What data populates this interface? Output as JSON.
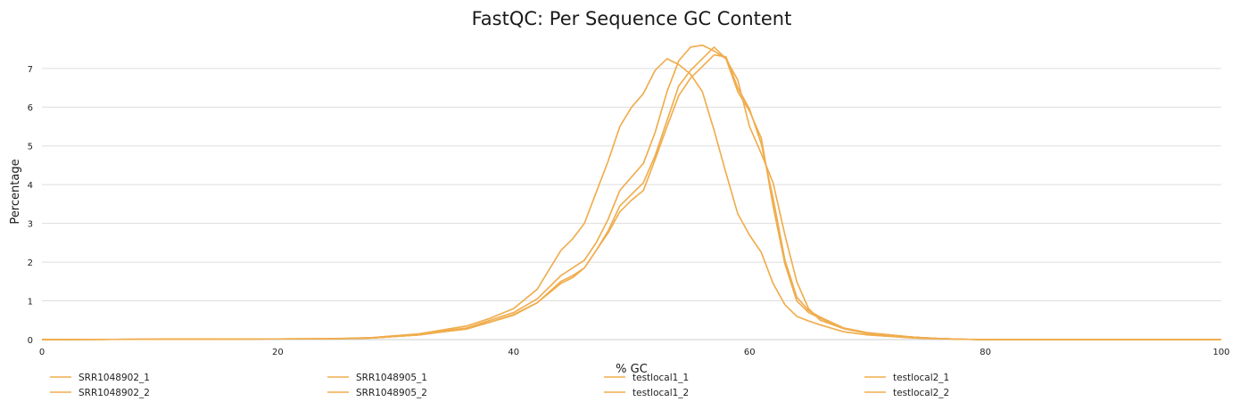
{
  "chart_data": {
    "type": "line",
    "title": "FastQC: Per Sequence GC Content",
    "xlabel": "% GC",
    "ylabel": "Percentage",
    "xlim": [
      0,
      100
    ],
    "ylim": [
      0,
      7.8
    ],
    "xticks": [
      0,
      20,
      40,
      60,
      80,
      100
    ],
    "yticks": [
      0,
      1,
      2,
      3,
      4,
      5,
      6,
      7
    ],
    "grid": true,
    "legend": "bottom",
    "color": "#f0ad4e",
    "series": [
      {
        "name": "SRR1048902_1",
        "x": [
          24,
          28,
          32,
          34,
          36,
          38,
          40,
          42,
          44,
          45,
          46,
          47,
          48,
          49,
          50,
          51,
          52,
          53,
          54,
          55,
          56,
          57,
          58,
          59,
          60,
          61,
          62,
          63,
          64,
          65,
          66,
          68,
          70,
          72,
          74,
          76,
          78,
          80
        ],
        "y": [
          0.02,
          0.05,
          0.15,
          0.25,
          0.35,
          0.55,
          0.8,
          1.3,
          2.3,
          2.6,
          3.0,
          3.8,
          4.6,
          5.5,
          6.0,
          6.35,
          6.95,
          7.25,
          7.1,
          6.85,
          6.4,
          5.4,
          4.3,
          3.25,
          2.7,
          2.25,
          1.45,
          0.9,
          0.6,
          0.48,
          0.38,
          0.2,
          0.12,
          0.08,
          0.04,
          0.02,
          0.01,
          0.0
        ]
      },
      {
        "name": "SRR1048902_2",
        "x": [
          24,
          28,
          32,
          34,
          36,
          38,
          40,
          42,
          44,
          45,
          46,
          47,
          48,
          49,
          50,
          51,
          52,
          53,
          54,
          55,
          56,
          57,
          58,
          59,
          60,
          61,
          62,
          63,
          64,
          65,
          66,
          68,
          70,
          72,
          74,
          76,
          78,
          80
        ],
        "y": [
          0.02,
          0.04,
          0.13,
          0.22,
          0.3,
          0.5,
          0.7,
          1.05,
          1.65,
          1.85,
          2.05,
          2.5,
          3.1,
          3.85,
          4.2,
          4.55,
          5.35,
          6.4,
          7.2,
          7.55,
          7.6,
          7.45,
          7.25,
          6.7,
          5.5,
          4.8,
          4.05,
          2.7,
          1.5,
          0.8,
          0.5,
          0.28,
          0.16,
          0.11,
          0.06,
          0.03,
          0.01,
          0.0
        ]
      },
      {
        "name": "SRR1048905_1",
        "x": [
          24,
          28,
          32,
          34,
          36,
          38,
          40,
          42,
          44,
          45,
          46,
          47,
          48,
          49,
          50,
          51,
          52,
          53,
          54,
          55,
          56,
          57,
          58,
          59,
          60,
          61,
          62,
          63,
          64,
          65,
          66,
          68,
          70,
          72,
          74,
          76,
          78,
          80
        ],
        "y": [
          0.02,
          0.04,
          0.12,
          0.2,
          0.28,
          0.45,
          0.65,
          0.95,
          1.5,
          1.65,
          1.85,
          2.3,
          2.75,
          3.3,
          3.6,
          3.85,
          4.65,
          5.5,
          6.3,
          6.75,
          7.05,
          7.35,
          7.3,
          6.5,
          5.95,
          5.05,
          3.65,
          2.05,
          1.1,
          0.75,
          0.58,
          0.3,
          0.18,
          0.12,
          0.06,
          0.03,
          0.01,
          0.0
        ]
      },
      {
        "name": "SRR1048905_2",
        "x": [
          24,
          28,
          32,
          34,
          36,
          38,
          40,
          42,
          44,
          45,
          46,
          47,
          48,
          49,
          50,
          51,
          52,
          53,
          54,
          55,
          56,
          57,
          58,
          59,
          60,
          61,
          62,
          63,
          64,
          65,
          66,
          68,
          70,
          72,
          74,
          76,
          78,
          80
        ],
        "y": [
          0.02,
          0.04,
          0.12,
          0.2,
          0.27,
          0.45,
          0.63,
          0.95,
          1.45,
          1.6,
          1.85,
          2.3,
          2.8,
          3.45,
          3.75,
          4.05,
          4.75,
          5.65,
          6.55,
          6.95,
          7.25,
          7.55,
          7.25,
          6.4,
          5.9,
          5.2,
          3.45,
          1.95,
          1.0,
          0.7,
          0.55,
          0.28,
          0.16,
          0.11,
          0.06,
          0.03,
          0.01,
          0.0
        ]
      },
      {
        "name": "testlocal1_1",
        "x": [
          24,
          28,
          32,
          34,
          36,
          38,
          40,
          42,
          44,
          45,
          46,
          47,
          48,
          49,
          50,
          51,
          52,
          53,
          54,
          55,
          56,
          57,
          58,
          59,
          60,
          61,
          62,
          63,
          64,
          65,
          66,
          68,
          70,
          72,
          74,
          76,
          78,
          80
        ],
        "y": [
          0.02,
          0.05,
          0.15,
          0.25,
          0.35,
          0.55,
          0.8,
          1.3,
          2.3,
          2.6,
          3.0,
          3.8,
          4.6,
          5.5,
          6.0,
          6.35,
          6.95,
          7.25,
          7.1,
          6.85,
          6.4,
          5.4,
          4.3,
          3.25,
          2.7,
          2.25,
          1.45,
          0.9,
          0.6,
          0.48,
          0.38,
          0.2,
          0.12,
          0.08,
          0.04,
          0.02,
          0.01,
          0.0
        ]
      },
      {
        "name": "testlocal1_2",
        "x": [
          24,
          28,
          32,
          34,
          36,
          38,
          40,
          42,
          44,
          45,
          46,
          47,
          48,
          49,
          50,
          51,
          52,
          53,
          54,
          55,
          56,
          57,
          58,
          59,
          60,
          61,
          62,
          63,
          64,
          65,
          66,
          68,
          70,
          72,
          74,
          76,
          78,
          80
        ],
        "y": [
          0.02,
          0.04,
          0.13,
          0.22,
          0.3,
          0.5,
          0.7,
          1.05,
          1.65,
          1.85,
          2.05,
          2.5,
          3.1,
          3.85,
          4.2,
          4.55,
          5.35,
          6.4,
          7.2,
          7.55,
          7.6,
          7.45,
          7.25,
          6.7,
          5.5,
          4.8,
          4.05,
          2.7,
          1.5,
          0.8,
          0.5,
          0.28,
          0.16,
          0.11,
          0.06,
          0.03,
          0.01,
          0.0
        ]
      },
      {
        "name": "testlocal2_1",
        "x": [
          24,
          28,
          32,
          34,
          36,
          38,
          40,
          42,
          44,
          45,
          46,
          47,
          48,
          49,
          50,
          51,
          52,
          53,
          54,
          55,
          56,
          57,
          58,
          59,
          60,
          61,
          62,
          63,
          64,
          65,
          66,
          68,
          70,
          72,
          74,
          76,
          78,
          80
        ],
        "y": [
          0.02,
          0.04,
          0.12,
          0.2,
          0.28,
          0.45,
          0.65,
          0.95,
          1.5,
          1.65,
          1.85,
          2.3,
          2.75,
          3.3,
          3.6,
          3.85,
          4.65,
          5.5,
          6.3,
          6.75,
          7.05,
          7.35,
          7.3,
          6.5,
          5.95,
          5.05,
          3.65,
          2.05,
          1.1,
          0.75,
          0.58,
          0.3,
          0.18,
          0.12,
          0.06,
          0.03,
          0.01,
          0.0
        ]
      },
      {
        "name": "testlocal2_2",
        "x": [
          24,
          28,
          32,
          34,
          36,
          38,
          40,
          42,
          44,
          45,
          46,
          47,
          48,
          49,
          50,
          51,
          52,
          53,
          54,
          55,
          56,
          57,
          58,
          59,
          60,
          61,
          62,
          63,
          64,
          65,
          66,
          68,
          70,
          72,
          74,
          76,
          78,
          80
        ],
        "y": [
          0.02,
          0.04,
          0.12,
          0.2,
          0.27,
          0.45,
          0.63,
          0.95,
          1.45,
          1.6,
          1.85,
          2.3,
          2.8,
          3.45,
          3.75,
          4.05,
          4.75,
          5.65,
          6.55,
          6.95,
          7.25,
          7.55,
          7.25,
          6.4,
          5.9,
          5.2,
          3.45,
          1.95,
          1.0,
          0.7,
          0.55,
          0.28,
          0.16,
          0.11,
          0.06,
          0.03,
          0.01,
          0.0
        ]
      }
    ]
  }
}
